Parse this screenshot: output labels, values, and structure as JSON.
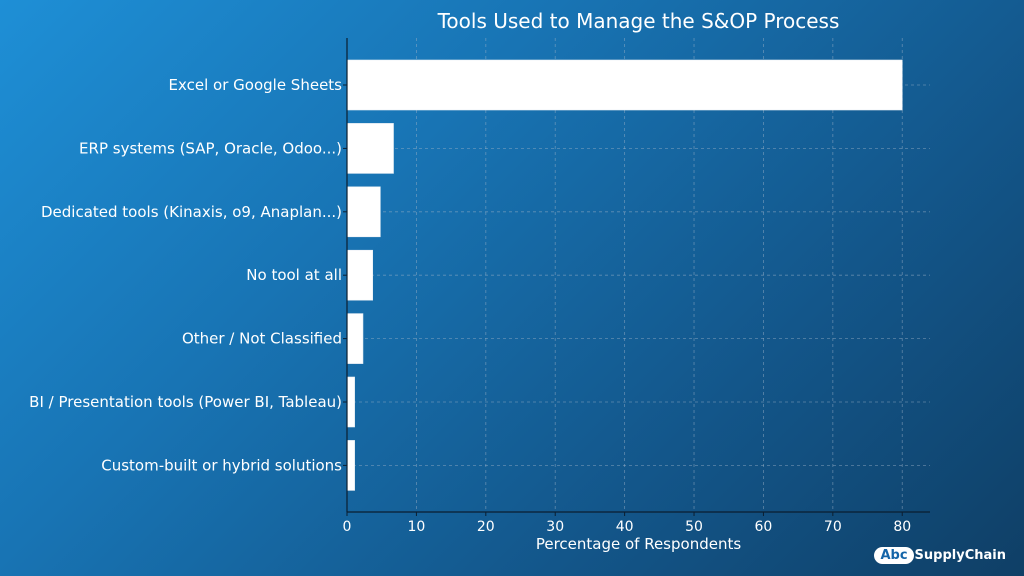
{
  "logo": {
    "badge": "Abc",
    "name": "SupplyChain"
  },
  "chart_data": {
    "type": "bar",
    "orientation": "horizontal",
    "title": "Tools Used to Manage the S&OP Process",
    "xlabel": "Percentage of Respondents",
    "ylabel": "",
    "categories": [
      "Excel or Google Sheets",
      "ERP systems (SAP, Oracle, Odoo...)",
      "Dedicated tools (Kinaxis, o9, Anaplan...)",
      "No tool at all",
      "Other / Not Classified",
      "BI / Presentation tools (Power BI, Tableau)",
      "Custom-built or hybrid solutions"
    ],
    "values": [
      80,
      6.7,
      4.8,
      3.7,
      2.3,
      1.1,
      1.1
    ],
    "xlim": [
      0,
      84
    ],
    "xticks": [
      0,
      10,
      20,
      30,
      40,
      50,
      60,
      70,
      80
    ],
    "grid": true,
    "bar_color": "#ffffff",
    "grid_color": "#9fb3c8"
  }
}
